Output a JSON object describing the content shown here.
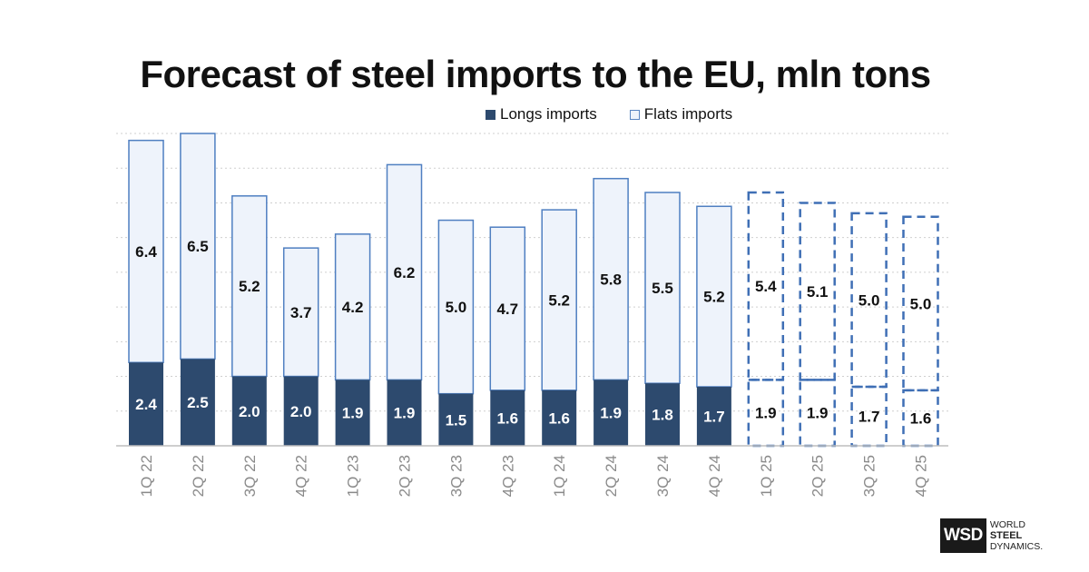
{
  "chart_data": {
    "type": "bar",
    "stacked": true,
    "title": "Forecast of steel imports to the EU, mln tons",
    "categories": [
      "1Q 22",
      "2Q 22",
      "3Q 22",
      "4Q 22",
      "1Q 23",
      "2Q 23",
      "3Q 23",
      "4Q 23",
      "1Q 24",
      "2Q 24",
      "3Q 24",
      "4Q 24",
      "1Q 25",
      "2Q 25",
      "3Q 25",
      "4Q 25"
    ],
    "forecast_from_index": 12,
    "series": [
      {
        "name": "Longs imports",
        "color": "#2d4a6e",
        "values": [
          2.4,
          2.5,
          2.0,
          2.0,
          1.9,
          1.9,
          1.5,
          1.6,
          1.6,
          1.9,
          1.8,
          1.7,
          1.9,
          1.9,
          1.7,
          1.6
        ]
      },
      {
        "name": "Flats imports",
        "color": "#eef3fb",
        "values": [
          6.4,
          6.5,
          5.2,
          3.7,
          4.2,
          6.2,
          5.0,
          4.7,
          5.2,
          5.8,
          5.5,
          5.2,
          5.4,
          5.1,
          5.0,
          5.0
        ]
      }
    ],
    "ylim": [
      0,
      9
    ],
    "grid": true,
    "legend": "top-right",
    "xlabel": "",
    "ylabel": ""
  },
  "logo": {
    "abbr": "WSD",
    "line1": "WORLD",
    "line2": "STEEL",
    "line3": "DYNAMICS."
  }
}
